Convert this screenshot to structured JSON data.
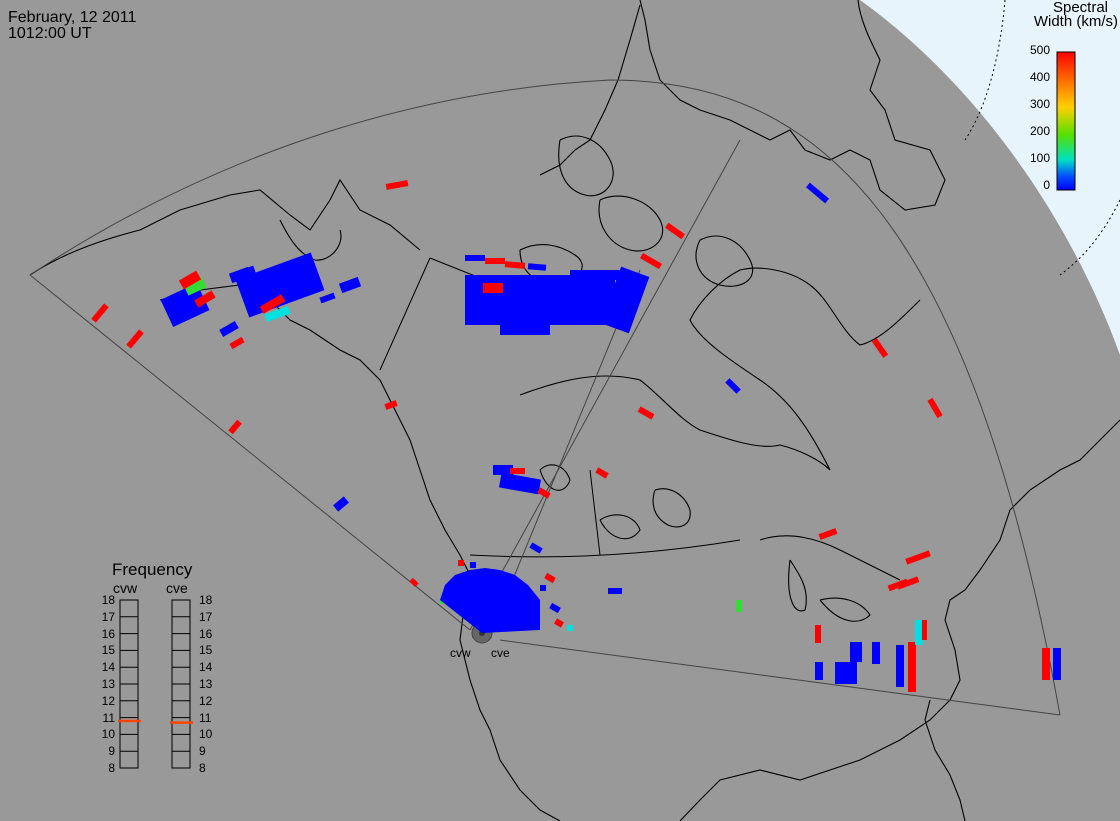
{
  "header": {
    "date": "February, 12 2011",
    "time": "1012:00 UT"
  },
  "colorbar": {
    "title_line1": "Spectral",
    "title_line2": "Width (km/s)",
    "ticks": [
      "500",
      "400",
      "300",
      "200",
      "100",
      "0"
    ],
    "colors_top_to_bottom": [
      "#ff0000",
      "#ff6a00",
      "#ffd000",
      "#55e000",
      "#00e0c0",
      "#0050ff",
      "#0000ff"
    ]
  },
  "frequency": {
    "title": "Frequency",
    "radars": [
      "cvw",
      "cve"
    ],
    "scale": [
      "18",
      "17",
      "16",
      "15",
      "14",
      "13",
      "12",
      "11",
      "10",
      "9",
      "8"
    ],
    "marker_values": [
      10.8,
      10.7
    ],
    "marker_color": "#ff4500"
  },
  "sites": [
    "cvw",
    "cve"
  ],
  "colors": {
    "map_background": "#999999",
    "polar_region": "#e8f4fc",
    "scatter_low": "#0000ff",
    "scatter_high": "#ff0000"
  }
}
